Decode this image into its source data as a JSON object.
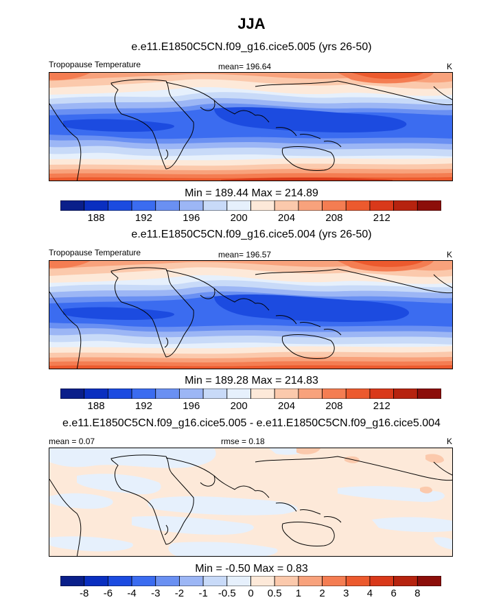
{
  "page_title": "JJA",
  "panels": [
    {
      "title": "e.e11.E1850C5CN.f09_g16.cice5.005 (yrs 26-50)",
      "left_label": "Tropopause Temperature",
      "center_label": "mean= 196.64",
      "right_label": "K",
      "minmax": "Min = 189.44 Max = 214.89"
    },
    {
      "title": "e.e11.E1850C5CN.f09_g16.cice5.004 (yrs 26-50)",
      "left_label": "Tropopause Temperature",
      "center_label": "mean= 196.57",
      "right_label": "K",
      "minmax": "Min = 189.28 Max = 214.83"
    },
    {
      "title": "e.e11.E1850C5CN.f09_g16.cice5.005 - e.e11.E1850C5CN.f09_g16.cice5.004",
      "left_label": "mean =   0.07",
      "center_label": "rmse =   0.18",
      "right_label": "K",
      "minmax": "Min =  -0.50 Max =   0.83"
    }
  ],
  "colorbars": {
    "abs": {
      "colors": [
        "#0a1f8a",
        "#0a2fc0",
        "#1c4be0",
        "#3b6cf0",
        "#6a90f2",
        "#9cb6f5",
        "#c8daf8",
        "#e6f0fc",
        "#fde9d9",
        "#fbc9ac",
        "#f8a27c",
        "#f47d52",
        "#ec5a2e",
        "#d9391a",
        "#b6230f",
        "#8c0e0a"
      ],
      "ticks": [
        "188",
        "192",
        "196",
        "200",
        "204",
        "208",
        "212"
      ],
      "tick_positions": [
        1.5,
        3.5,
        5.5,
        7.5,
        9.5,
        11.5,
        13.5
      ]
    },
    "diff": {
      "colors": [
        "#0a1f8a",
        "#0a2fc0",
        "#1c4be0",
        "#3b6cf0",
        "#6a90f2",
        "#9cb6f5",
        "#c8daf8",
        "#e6f0fc",
        "#fde9d9",
        "#fbc9ac",
        "#f8a27c",
        "#f47d52",
        "#ec5a2e",
        "#d9391a",
        "#b6230f",
        "#8c0e0a"
      ],
      "ticks": [
        "-8",
        "-6",
        "-4",
        "-3",
        "-2",
        "-1",
        "-0.5",
        "0",
        "0.5",
        "1",
        "2",
        "3",
        "4",
        "6",
        "8"
      ],
      "tick_positions": [
        1,
        2,
        3,
        4,
        5,
        6,
        7,
        8,
        9,
        10,
        11,
        12,
        13,
        14,
        15
      ]
    }
  },
  "chart_data": [
    {
      "type": "heatmap",
      "title": "e.e11.E1850C5CN.f09_g16.cice5.005 (yrs 26-50)",
      "variable": "Tropopause Temperature",
      "units": "K",
      "mean": 196.64,
      "min": 189.44,
      "max": 214.89,
      "levels": [
        186,
        188,
        190,
        192,
        194,
        196,
        198,
        200,
        202,
        204,
        206,
        208,
        210,
        212,
        214
      ]
    },
    {
      "type": "heatmap",
      "title": "e.e11.E1850C5CN.f09_g16.cice5.004 (yrs 26-50)",
      "variable": "Tropopause Temperature",
      "units": "K",
      "mean": 196.57,
      "min": 189.28,
      "max": 214.83,
      "levels": [
        186,
        188,
        190,
        192,
        194,
        196,
        198,
        200,
        202,
        204,
        206,
        208,
        210,
        212,
        214
      ]
    },
    {
      "type": "heatmap",
      "title": "e.e11.E1850C5CN.f09_g16.cice5.005 - e.e11.E1850C5CN.f09_g16.cice5.004",
      "units": "K",
      "mean": 0.07,
      "rmse": 0.18,
      "min": -0.5,
      "max": 0.83,
      "levels": [
        -8,
        -6,
        -4,
        -3,
        -2,
        -1,
        -0.5,
        0,
        0.5,
        1,
        2,
        3,
        4,
        6,
        8
      ]
    }
  ]
}
